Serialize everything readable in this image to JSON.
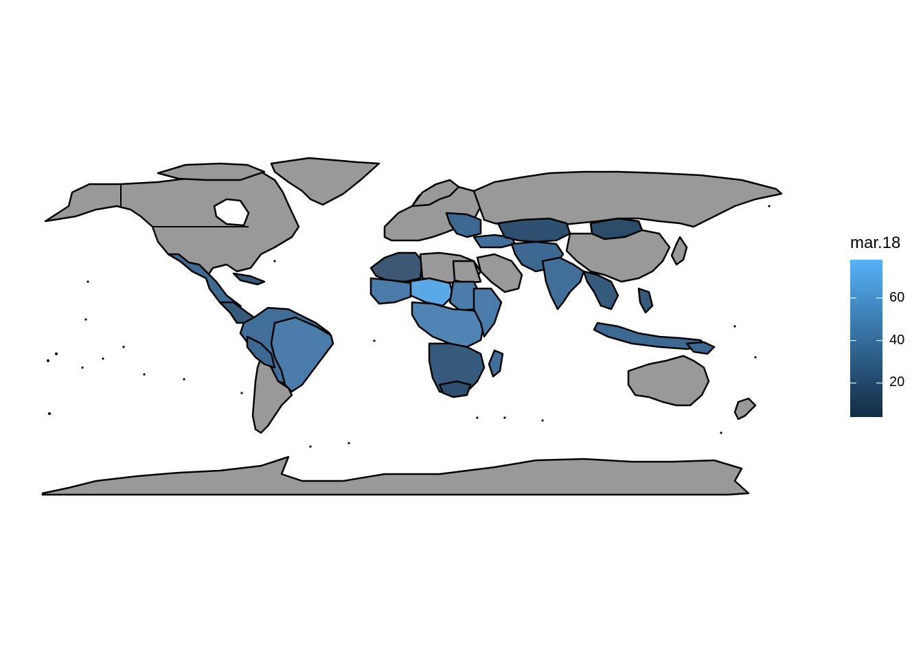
{
  "legend": {
    "title": "mar.18",
    "ticks": [
      {
        "value": 20,
        "label": "20"
      },
      {
        "value": 40,
        "label": "40"
      },
      {
        "value": 60,
        "label": "60"
      }
    ],
    "range": [
      4,
      78
    ],
    "color_low": "#132B43",
    "color_high": "#56B1F7"
  },
  "map": {
    "projection": "equirectangular",
    "no_data_color": "#999999",
    "ocean_color": "#ffffff",
    "border_color": "#000000"
  }
}
